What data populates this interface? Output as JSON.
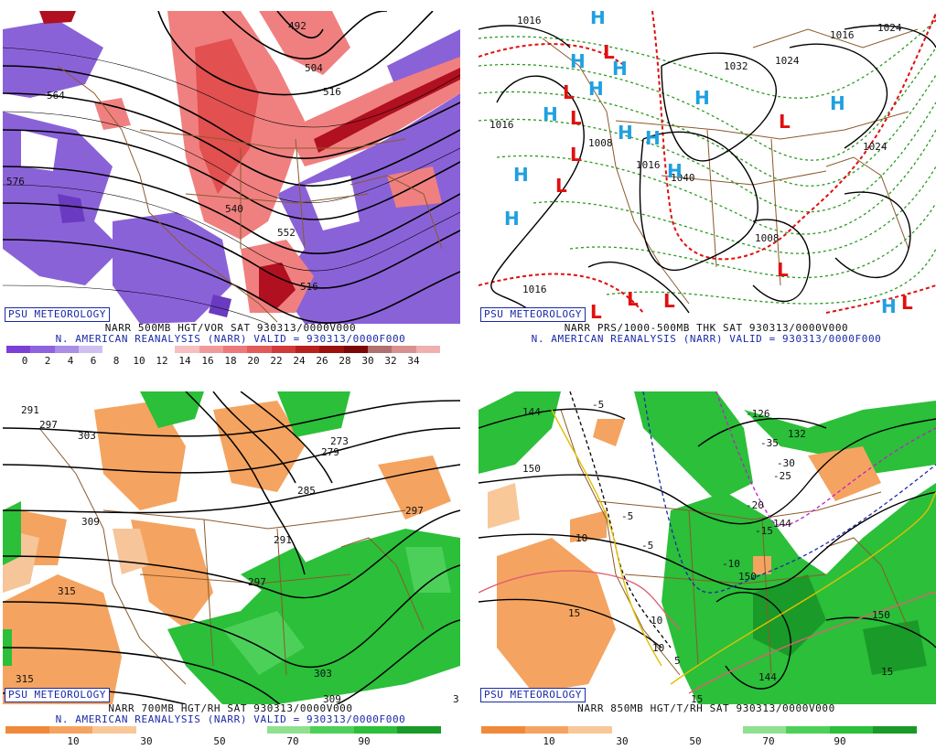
{
  "panels": {
    "p1": {
      "badge": "PSU METEOROLOGY",
      "caption1": "NARR 500MB HGT/VOR SAT 930313/0000V000",
      "caption2": "N. AMERICAN REANALYSIS (NARR) VALID = 930313/0000F000",
      "colorbar_ticks": [
        "0",
        "2",
        "4",
        "6",
        "8",
        "10",
        "12",
        "14",
        "16",
        "18",
        "20",
        "22",
        "24",
        "26",
        "28",
        "30",
        "32",
        "34"
      ],
      "contour_labels": [
        "492",
        "504",
        "516",
        "540",
        "552",
        "564",
        "576",
        "516"
      ],
      "colors": {
        "neg_vort": "#8a62d8",
        "pos_vort": "#e25050",
        "strong": "#b01020"
      }
    },
    "p2": {
      "badge": "PSU METEOROLOGY",
      "caption1": "NARR PRS/1000-500MB THK SAT 930313/0000V000",
      "caption2": "N. AMERICAN REANALYSIS (NARR) VALID = 930313/0000F000",
      "isobar_labels": [
        "1016",
        "1016",
        "1032",
        "1024",
        "1016",
        "1024",
        "1024",
        "1016",
        "1008",
        "1040",
        "1008",
        "1016"
      ],
      "high_symbol": "H",
      "low_symbol": "L",
      "colors": {
        "high": "#1fa0e0",
        "low": "#e01010",
        "thickness": "#2a9a20"
      }
    },
    "p3": {
      "badge": "PSU METEOROLOGY",
      "caption1": "NARR 700MB HGT/RH SAT 930313/0000V000",
      "caption2": "N. AMERICAN REANALYSIS (NARR) VALID = 930313/0000F000",
      "colorbar_ticks": [
        "10",
        "30",
        "50",
        "70",
        "90"
      ],
      "contour_labels": [
        "291",
        "297",
        "303",
        "279",
        "273",
        "285",
        "309",
        "291",
        "297",
        "315",
        "297",
        "303",
        "315",
        "309",
        "3"
      ],
      "colors": {
        "dry": "#f4a460",
        "moist": "#2bbf3a"
      }
    },
    "p4": {
      "badge": "PSU METEOROLOGY",
      "caption1": "NARR 850MB HGT/T/RH SAT 930313/0000V000",
      "caption2": "",
      "colorbar_ticks": [
        "10",
        "30",
        "50",
        "70",
        "90"
      ],
      "contour_labels": [
        "144",
        "-5",
        "-126",
        "132",
        "-35",
        "150",
        "-30",
        "-25",
        "-20",
        "-5",
        "-15",
        "144",
        "10",
        "-5",
        "-10",
        "150",
        "15",
        "10",
        "10",
        "5",
        "144",
        "15",
        "15",
        "150"
      ],
      "colors": {
        "dry": "#f4a460",
        "moist": "#2bbf3a"
      }
    }
  }
}
